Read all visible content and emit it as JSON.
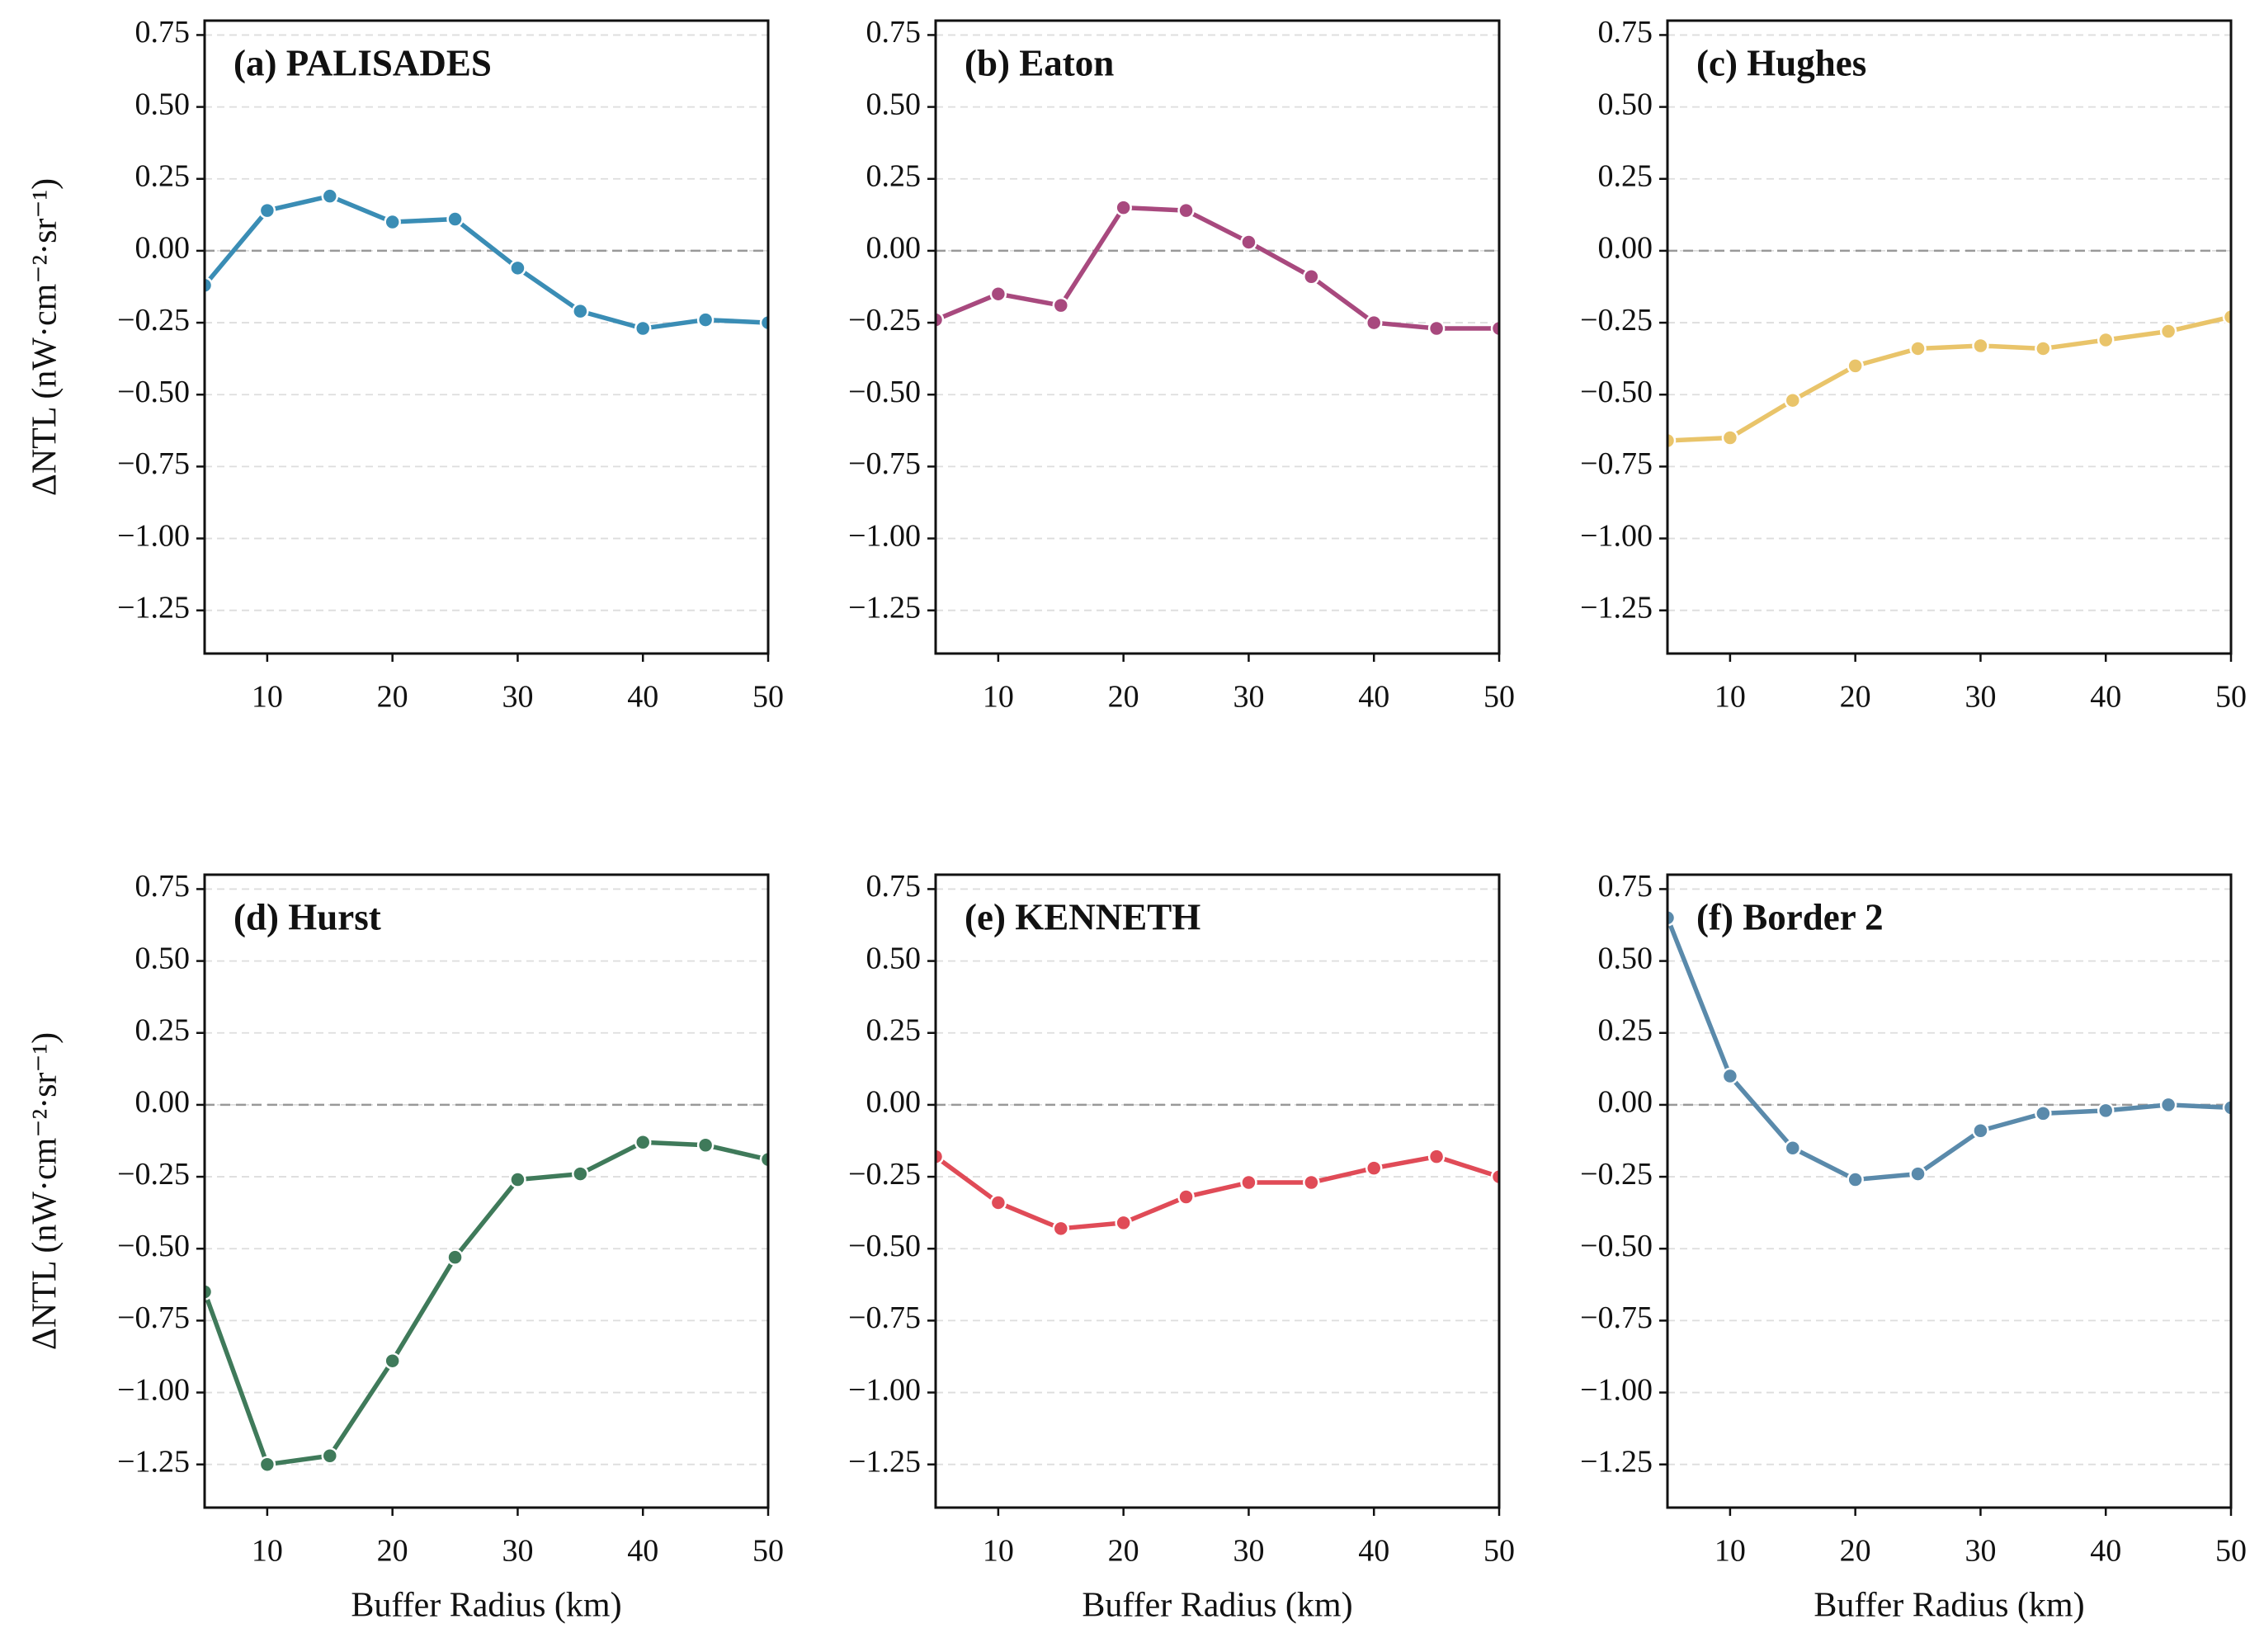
{
  "chart_data": [
    {
      "type": "line",
      "title": "(a) PALISADES",
      "x": [
        5,
        10,
        15,
        20,
        25,
        30,
        35,
        40,
        45,
        50
      ],
      "values": [
        -0.12,
        0.14,
        0.19,
        0.1,
        0.11,
        -0.06,
        -0.21,
        -0.27,
        -0.24,
        -0.25
      ],
      "color": "#3a8db5",
      "xlim": [
        5,
        50
      ],
      "xticks": [
        10,
        20,
        30,
        40,
        50
      ],
      "ylim": [
        -1.4,
        0.8
      ],
      "yticks": [
        {
          "value": -1.25,
          "label": "−1.25"
        },
        {
          "value": -1,
          "label": "−1.00"
        },
        {
          "value": -0.75,
          "label": "−0.75"
        },
        {
          "value": -0.5,
          "label": "−0.50"
        },
        {
          "value": -0.25,
          "label": "−0.25"
        },
        {
          "value": 0,
          "label": "0.00"
        },
        {
          "value": 0.25,
          "label": "0.25"
        },
        {
          "value": 0.5,
          "label": "0.50"
        },
        {
          "value": 0.75,
          "label": "0.75"
        }
      ],
      "grid": true,
      "ylabel": "ΔNTL (nW·cm⁻²·sr⁻¹)"
    },
    {
      "type": "line",
      "title": "(b) Eaton",
      "x": [
        5,
        10,
        15,
        20,
        25,
        30,
        35,
        40,
        45,
        50
      ],
      "values": [
        -0.24,
        -0.15,
        -0.19,
        0.15,
        0.14,
        0.03,
        -0.09,
        -0.25,
        -0.27,
        -0.27
      ],
      "color": "#a8497e",
      "xlim": [
        5,
        50
      ],
      "xticks": [
        10,
        20,
        30,
        40,
        50
      ],
      "ylim": [
        -1.4,
        0.8
      ],
      "yticks": [
        {
          "value": -1.25,
          "label": "−1.25"
        },
        {
          "value": -1,
          "label": "−1.00"
        },
        {
          "value": -0.75,
          "label": "−0.75"
        },
        {
          "value": -0.5,
          "label": "−0.50"
        },
        {
          "value": -0.25,
          "label": "−0.25"
        },
        {
          "value": 0,
          "label": "0.00"
        },
        {
          "value": 0.25,
          "label": "0.25"
        },
        {
          "value": 0.5,
          "label": "0.50"
        },
        {
          "value": 0.75,
          "label": "0.75"
        }
      ],
      "grid": true
    },
    {
      "type": "line",
      "title": "(c) Hughes",
      "x": [
        5,
        10,
        15,
        20,
        25,
        30,
        35,
        40,
        45,
        50
      ],
      "values": [
        -0.66,
        -0.65,
        -0.52,
        -0.4,
        -0.34,
        -0.33,
        -0.34,
        -0.31,
        -0.28,
        -0.23
      ],
      "color": "#e9c46a",
      "xlim": [
        5,
        50
      ],
      "xticks": [
        10,
        20,
        30,
        40,
        50
      ],
      "ylim": [
        -1.4,
        0.8
      ],
      "yticks": [
        {
          "value": -1.25,
          "label": "−1.25"
        },
        {
          "value": -1,
          "label": "−1.00"
        },
        {
          "value": -0.75,
          "label": "−0.75"
        },
        {
          "value": -0.5,
          "label": "−0.50"
        },
        {
          "value": -0.25,
          "label": "−0.25"
        },
        {
          "value": 0,
          "label": "0.00"
        },
        {
          "value": 0.25,
          "label": "0.25"
        },
        {
          "value": 0.5,
          "label": "0.50"
        },
        {
          "value": 0.75,
          "label": "0.75"
        }
      ],
      "grid": true
    },
    {
      "type": "line",
      "title": "(d) Hurst",
      "x": [
        5,
        10,
        15,
        20,
        25,
        30,
        35,
        40,
        45,
        50
      ],
      "values": [
        -0.65,
        -1.25,
        -1.22,
        -0.89,
        -0.53,
        -0.26,
        -0.24,
        -0.13,
        -0.14,
        -0.19
      ],
      "color": "#3f7a5a",
      "xlim": [
        5,
        50
      ],
      "xticks": [
        10,
        20,
        30,
        40,
        50
      ],
      "ylim": [
        -1.4,
        0.8
      ],
      "yticks": [
        {
          "value": -1.25,
          "label": "−1.25"
        },
        {
          "value": -1,
          "label": "−1.00"
        },
        {
          "value": -0.75,
          "label": "−0.75"
        },
        {
          "value": -0.5,
          "label": "−0.50"
        },
        {
          "value": -0.25,
          "label": "−0.25"
        },
        {
          "value": 0,
          "label": "0.00"
        },
        {
          "value": 0.25,
          "label": "0.25"
        },
        {
          "value": 0.5,
          "label": "0.50"
        },
        {
          "value": 0.75,
          "label": "0.75"
        }
      ],
      "grid": true,
      "ylabel": "ΔNTL (nW·cm⁻²·sr⁻¹)",
      "xlabel": "Buffer Radius (km)"
    },
    {
      "type": "line",
      "title": "(e) KENNETH",
      "x": [
        5,
        10,
        15,
        20,
        25,
        30,
        35,
        40,
        45,
        50
      ],
      "values": [
        -0.18,
        -0.34,
        -0.43,
        -0.41,
        -0.32,
        -0.27,
        -0.27,
        -0.22,
        -0.18,
        -0.25
      ],
      "color": "#e04b57",
      "xlim": [
        5,
        50
      ],
      "xticks": [
        10,
        20,
        30,
        40,
        50
      ],
      "ylim": [
        -1.4,
        0.8
      ],
      "yticks": [
        {
          "value": -1.25,
          "label": "−1.25"
        },
        {
          "value": -1,
          "label": "−1.00"
        },
        {
          "value": -0.75,
          "label": "−0.75"
        },
        {
          "value": -0.5,
          "label": "−0.50"
        },
        {
          "value": -0.25,
          "label": "−0.25"
        },
        {
          "value": 0,
          "label": "0.00"
        },
        {
          "value": 0.25,
          "label": "0.25"
        },
        {
          "value": 0.5,
          "label": "0.50"
        },
        {
          "value": 0.75,
          "label": "0.75"
        }
      ],
      "grid": true,
      "xlabel": "Buffer Radius (km)"
    },
    {
      "type": "line",
      "title": "(f) Border 2",
      "x": [
        5,
        10,
        15,
        20,
        25,
        30,
        35,
        40,
        45,
        50
      ],
      "values": [
        0.65,
        0.1,
        -0.15,
        -0.26,
        -0.24,
        -0.09,
        -0.03,
        -0.02,
        0.0,
        -0.01
      ],
      "color": "#5a8aab",
      "xlim": [
        5,
        50
      ],
      "xticks": [
        10,
        20,
        30,
        40,
        50
      ],
      "ylim": [
        -1.4,
        0.8
      ],
      "yticks": [
        {
          "value": -1.25,
          "label": "−1.25"
        },
        {
          "value": -1,
          "label": "−1.00"
        },
        {
          "value": -0.75,
          "label": "−0.75"
        },
        {
          "value": -0.5,
          "label": "−0.50"
        },
        {
          "value": -0.25,
          "label": "−0.25"
        },
        {
          "value": 0,
          "label": "0.00"
        },
        {
          "value": 0.25,
          "label": "0.25"
        },
        {
          "value": 0.5,
          "label": "0.50"
        },
        {
          "value": 0.75,
          "label": "0.75"
        }
      ],
      "grid": true,
      "xlabel": "Buffer Radius (km)"
    }
  ]
}
